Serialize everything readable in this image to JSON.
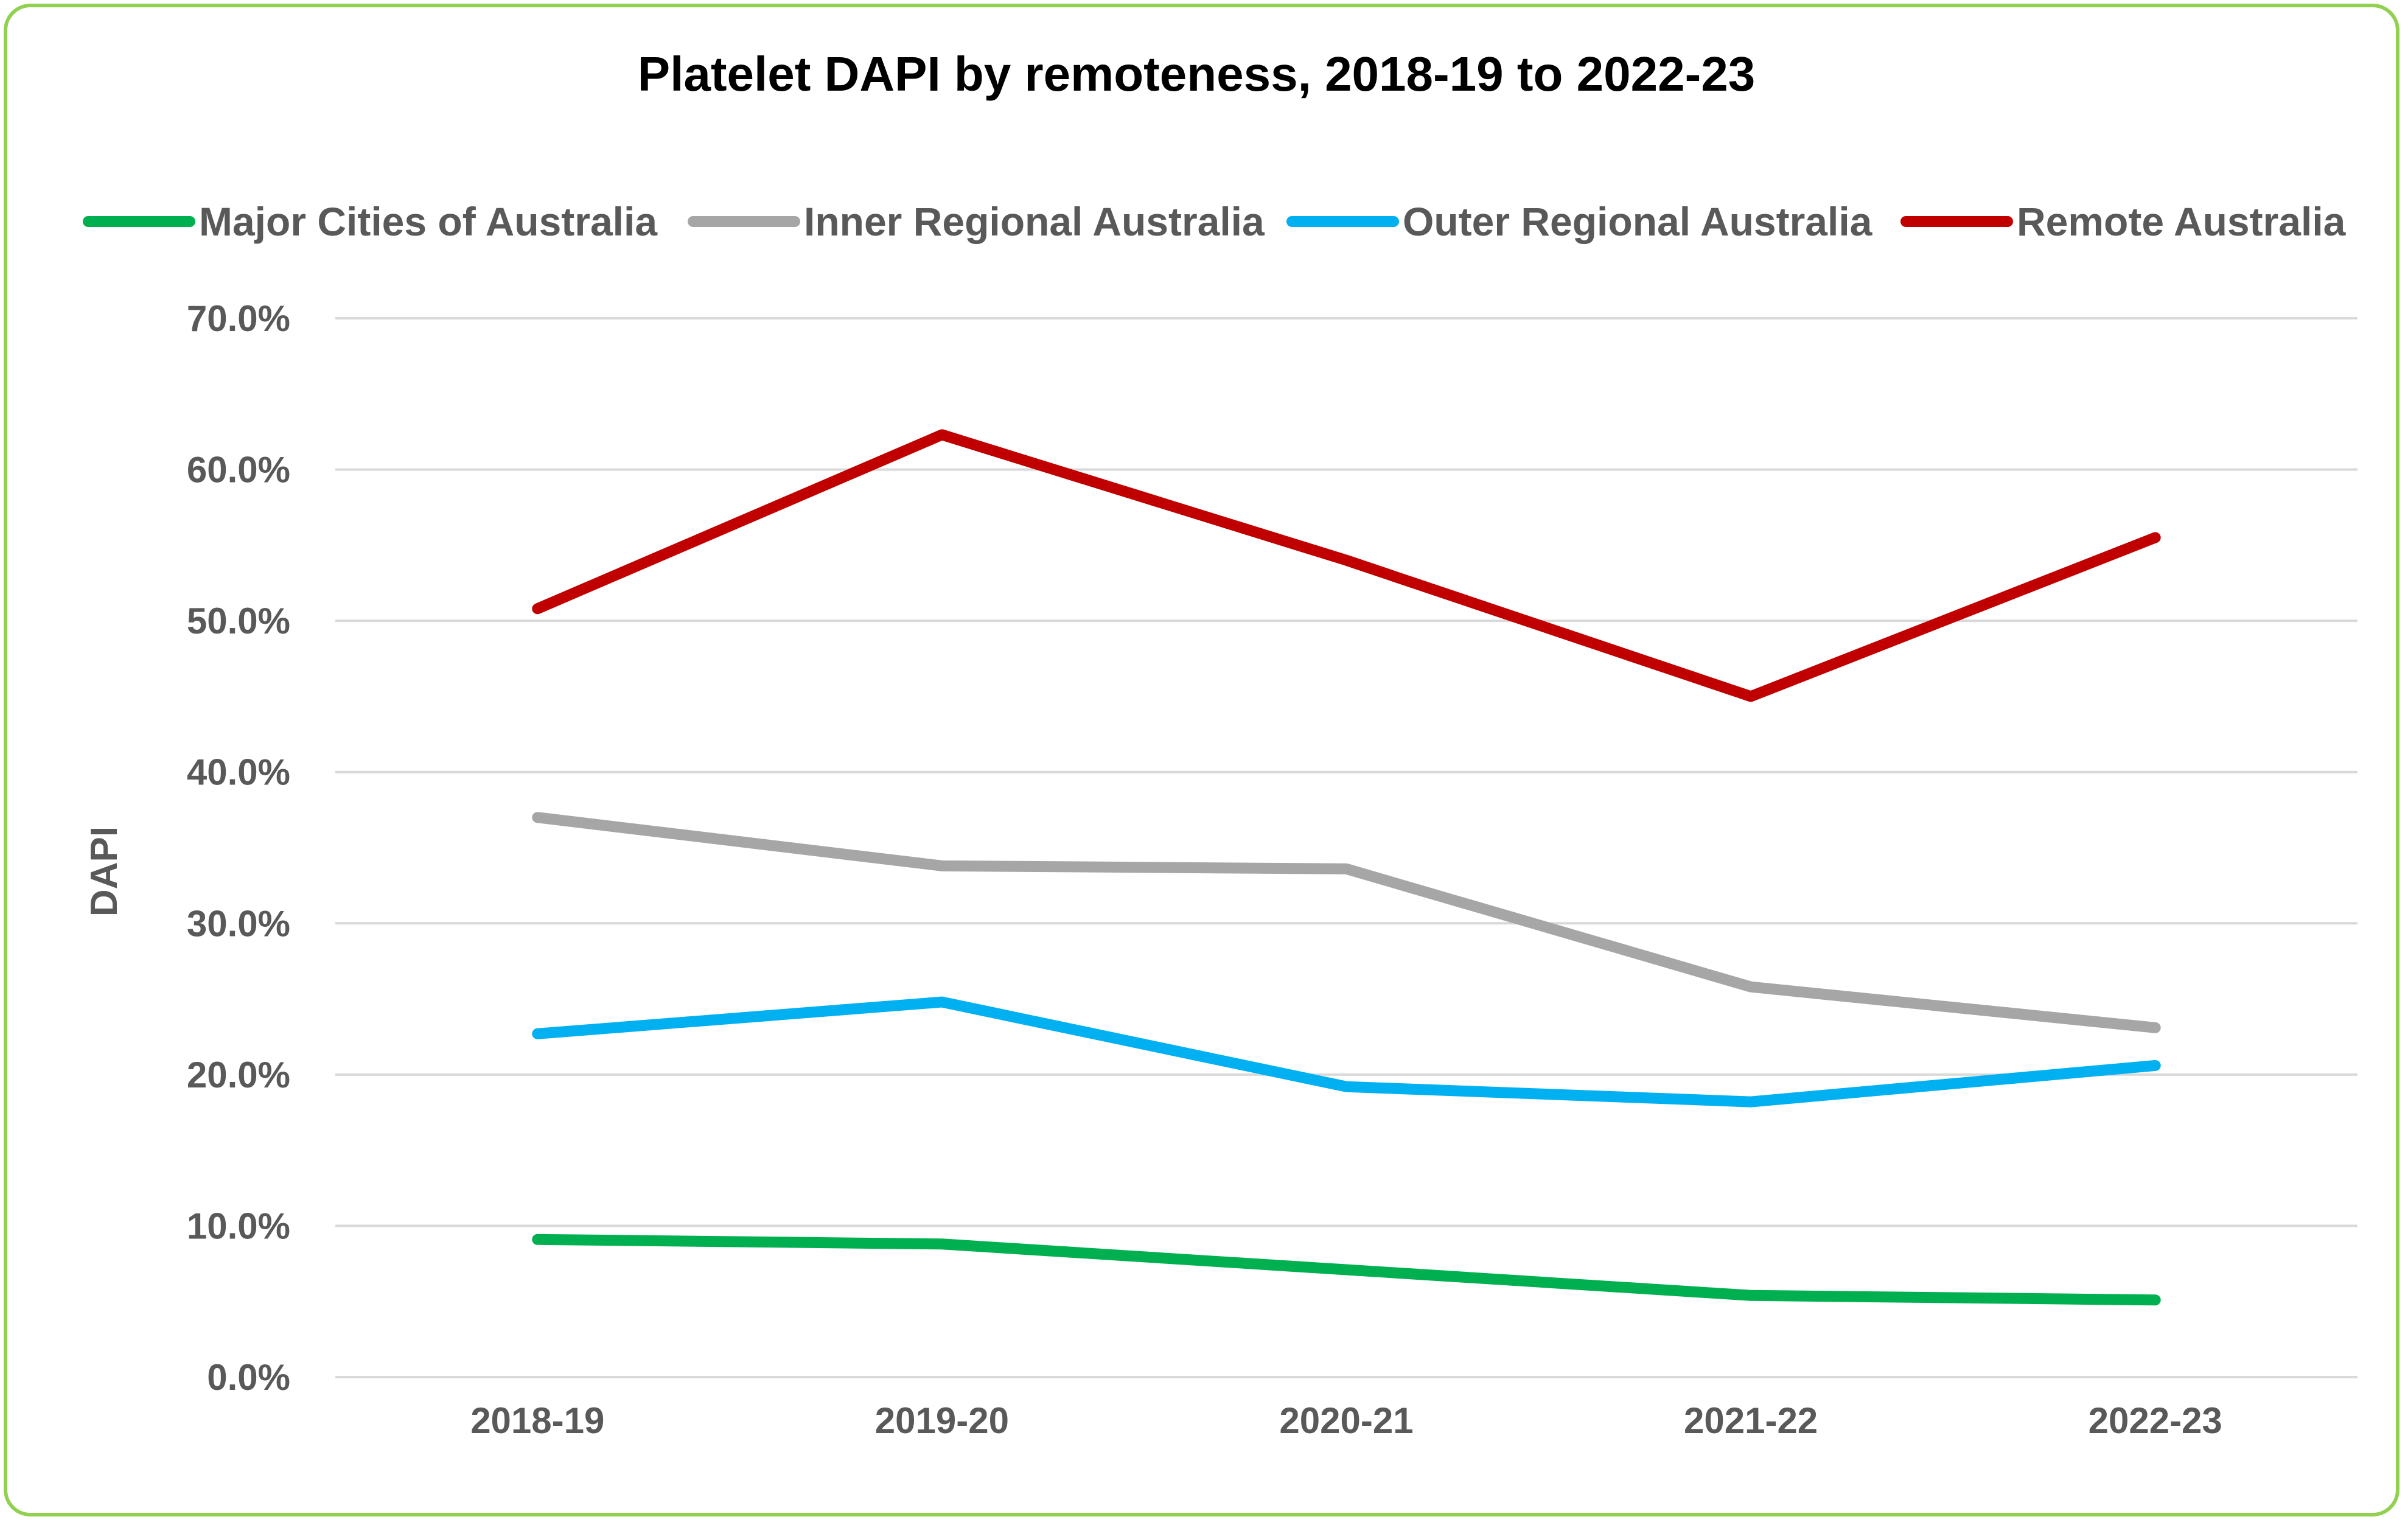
{
  "chart_data": {
    "type": "line",
    "title": "Platelet DAPI by remoteness, 2018-19 to 2022-23",
    "xlabel": "",
    "ylabel": "DAPI",
    "categories": [
      "2018-19",
      "2019-20",
      "2020-21",
      "2021-22",
      "2022-23"
    ],
    "ylim": [
      0,
      70
    ],
    "yticks": [
      "0.0%",
      "10.0%",
      "20.0%",
      "30.0%",
      "40.0%",
      "50.0%",
      "60.0%",
      "70.0%"
    ],
    "grid": true,
    "legend_position": "top",
    "series": [
      {
        "name": "Major Cities of Australia",
        "color": "#00b050",
        "values": [
          9.1,
          8.8,
          7.1,
          5.4,
          5.1
        ]
      },
      {
        "name": "Inner Regional Australia",
        "color": "#a6a6a6",
        "values": [
          37.0,
          33.8,
          33.6,
          25.8,
          23.1
        ]
      },
      {
        "name": "Outer Regional Australia",
        "color": "#00b0f0",
        "values": [
          22.7,
          24.8,
          19.2,
          18.2,
          20.6
        ]
      },
      {
        "name": "Remote Australia",
        "color": "#c00000",
        "values": [
          50.8,
          62.3,
          54.0,
          45.0,
          55.5
        ]
      }
    ]
  }
}
